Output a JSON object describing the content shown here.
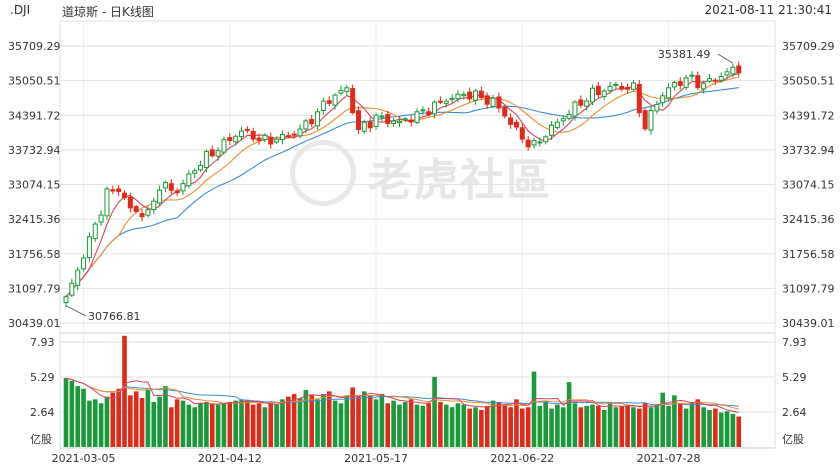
{
  "header": {
    "symbol": ".DJI",
    "name": "道琼斯 - 日K线图",
    "timestamp": "2021-08-11 21:30:41"
  },
  "watermark": {
    "text": "老虎社區"
  },
  "chart_data": {
    "type": "candlestick",
    "price_axis": {
      "ticks": [
        30439.01,
        31097.79,
        31756.58,
        32415.36,
        33074.15,
        33732.94,
        34391.72,
        35050.51,
        35709.29
      ],
      "tick_labels": [
        "30439.01",
        "31097.79",
        "31756.58",
        "32415.36",
        "33074.15",
        "33732.94",
        "34391.72",
        "35050.51",
        "35709.29"
      ]
    },
    "volume_axis": {
      "unit": "亿股",
      "ticks": [
        2.64,
        5.29,
        7.93
      ],
      "tick_labels": [
        "2.64",
        "5.29",
        "7.93"
      ]
    },
    "x_ticks": [
      {
        "index": 3,
        "label": "2021-03-05"
      },
      {
        "index": 28,
        "label": "2021-04-12"
      },
      {
        "index": 53,
        "label": "2021-05-17"
      },
      {
        "index": 78,
        "label": "2021-06-22"
      },
      {
        "index": 103,
        "label": "2021-07-28"
      }
    ],
    "annotations": [
      {
        "index": 114,
        "price": 35381.49,
        "label": "35381.49"
      },
      {
        "index": 0,
        "price": 30766.81,
        "label": "30766.81"
      }
    ],
    "candle_count": 116,
    "colors": {
      "up": "#1a9a3a",
      "down": "#e02a1a",
      "ma5": "#d9415f",
      "ma10": "#f08c2a",
      "ma20": "#3a8ed6",
      "grid": "#e2e2e2",
      "text": "#333333"
    },
    "anchors": [
      [
        0,
        30900
      ],
      [
        2,
        31450
      ],
      [
        5,
        32300
      ],
      [
        7,
        32900
      ],
      [
        9,
        33000
      ],
      [
        11,
        32600
      ],
      [
        14,
        32500
      ],
      [
        16,
        33050
      ],
      [
        19,
        32950
      ],
      [
        23,
        33500
      ],
      [
        27,
        33850
      ],
      [
        30,
        34100
      ],
      [
        34,
        33900
      ],
      [
        38,
        34000
      ],
      [
        41,
        34200
      ],
      [
        45,
        34700
      ],
      [
        48,
        34900
      ],
      [
        50,
        34100
      ],
      [
        53,
        34350
      ],
      [
        57,
        34250
      ],
      [
        61,
        34450
      ],
      [
        65,
        34700
      ],
      [
        69,
        34800
      ],
      [
        73,
        34650
      ],
      [
        75,
        34400
      ],
      [
        78,
        33950
      ],
      [
        80,
        33800
      ],
      [
        83,
        34150
      ],
      [
        87,
        34550
      ],
      [
        90,
        34800
      ],
      [
        94,
        34950
      ],
      [
        97,
        34900
      ],
      [
        99,
        34150
      ],
      [
        101,
        34650
      ],
      [
        103,
        34900
      ],
      [
        106,
        35100
      ],
      [
        109,
        34980
      ],
      [
        112,
        35150
      ],
      [
        115,
        35300
      ]
    ],
    "volumes": [
      5.2,
      5.0,
      4.6,
      4.4,
      3.5,
      3.6,
      3.3,
      3.8,
      4.1,
      4.4,
      8.4,
      3.9,
      4.2,
      3.7,
      4.3,
      3.4,
      3.8,
      4.6,
      3.0,
      3.6,
      3.5,
      3.2,
      3.0,
      3.3,
      3.4,
      3.3,
      3.2,
      3.3,
      3.4,
      3.5,
      3.6,
      3.5,
      3.2,
      3.3,
      3.0,
      3.4,
      3.2,
      3.6,
      3.8,
      4.0,
      3.7,
      4.3,
      3.9,
      3.6,
      4.0,
      4.2,
      3.5,
      3.3,
      3.9,
      4.5,
      3.8,
      4.2,
      3.9,
      3.6,
      4.0,
      3.3,
      3.5,
      3.2,
      3.4,
      3.6,
      3.2,
      3.1,
      3.3,
      5.3,
      3.4,
      3.2,
      3.0,
      3.3,
      3.2,
      2.9,
      3.0,
      2.8,
      3.1,
      3.5,
      3.4,
      3.2,
      3.0,
      3.6,
      2.9,
      3.0,
      5.7,
      3.1,
      3.5,
      2.9,
      3.2,
      3.0,
      4.9,
      3.3,
      3.0,
      3.1,
      3.2,
      3.1,
      2.8,
      3.4,
      3.0,
      3.1,
      3.2,
      3.0,
      2.9,
      3.3,
      3.0,
      3.2,
      4.1,
      3.1,
      3.9,
      3.3,
      2.9,
      3.4,
      3.6,
      3.0,
      2.8,
      2.9,
      2.6,
      2.7,
      2.5,
      2.3
    ]
  }
}
